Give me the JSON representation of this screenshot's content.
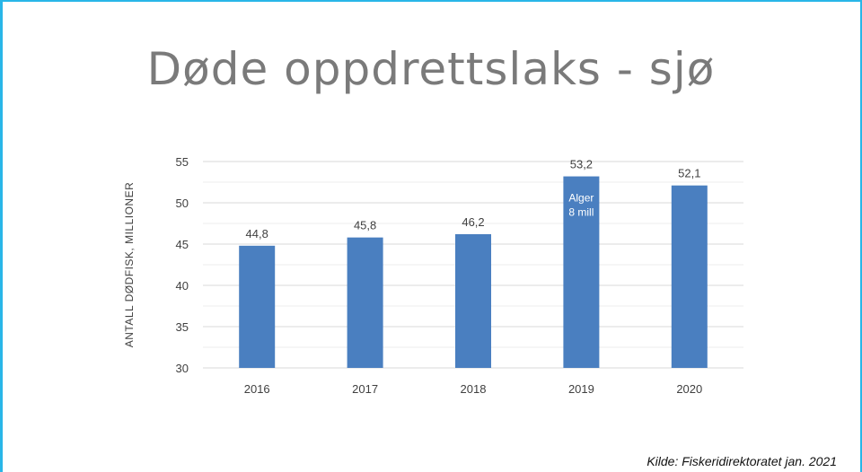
{
  "slide": {
    "title": "Døde oppdrettslaks - sjø",
    "source": "Kilde: Fiskeridirektoratet jan. 2021"
  },
  "colors": {
    "bar": "#4a7fc0",
    "grid": "#d9d9d9",
    "text": "#404040",
    "frame": "#29b6e8"
  },
  "chart_data": {
    "type": "bar",
    "title": "Døde oppdrettslaks - sjø",
    "xlabel": "",
    "ylabel": "ANTALL DØDFISK, MILLIONER",
    "categories": [
      "2016",
      "2017",
      "2018",
      "2019",
      "2020"
    ],
    "values": [
      44.8,
      45.8,
      46.2,
      53.2,
      52.1
    ],
    "data_labels": [
      "44,8",
      "45,8",
      "46,2",
      "53,2",
      "52,1"
    ],
    "ylim": [
      30,
      55
    ],
    "yticks": [
      30,
      35,
      40,
      45,
      50,
      55
    ],
    "grid": true,
    "annotations": [
      {
        "category": "2019",
        "lines": [
          "Alger",
          "8 mill"
        ]
      }
    ]
  }
}
